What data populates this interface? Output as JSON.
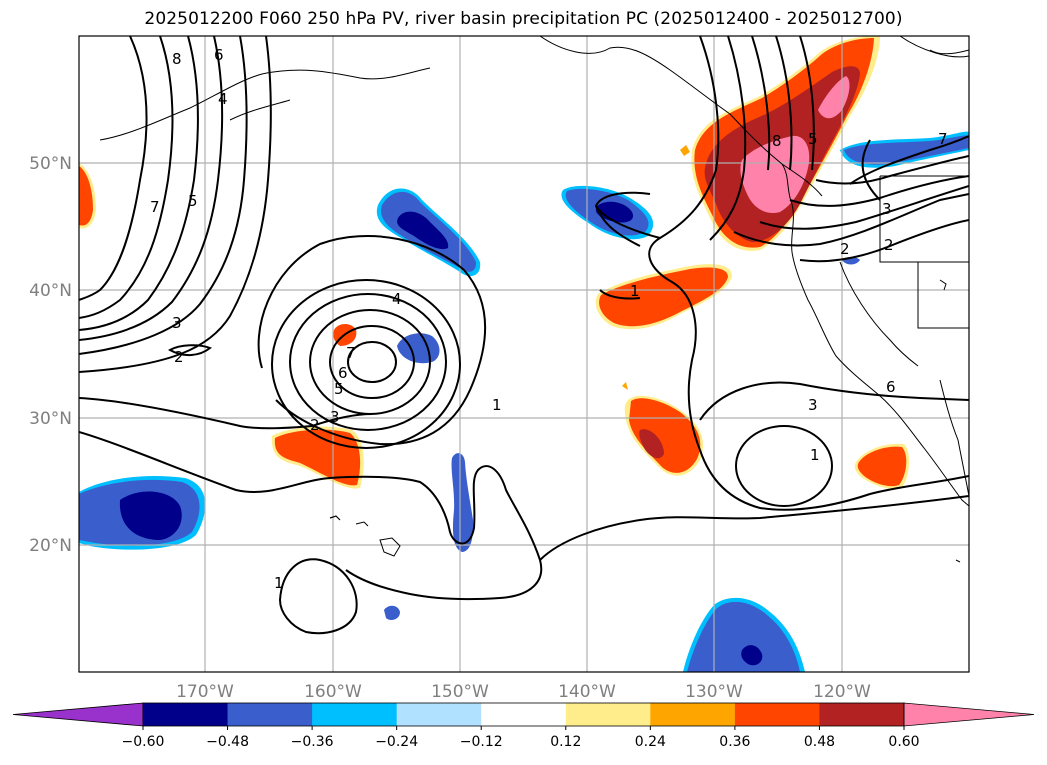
{
  "title": "2025012200 F060 250 hPa PV, river basin precipitation PC (2025012400 - 2025012700)",
  "lat_labels": [
    "50°N",
    "40°N",
    "30°N",
    "20°N"
  ],
  "lon_labels": [
    "170°W",
    "160°W",
    "150°W",
    "140°W",
    "130°W",
    "120°W"
  ],
  "pv_contour_labels": [
    "8",
    "6",
    "4",
    "7",
    "5",
    "3",
    "2",
    "4",
    "7",
    "6",
    "5",
    "3",
    "2",
    "1",
    "1",
    "1",
    "6",
    "8",
    "5",
    "3",
    "2",
    "2",
    "3",
    "1",
    "7"
  ],
  "colorbar": {
    "colors": [
      "#9932cc",
      "#00008b",
      "#3a5fcd",
      "#00bfff",
      "#b0e2ff",
      "#ffffff",
      "#ffec8b",
      "#ffa500",
      "#ff4500",
      "#b22222",
      "#ff82ab"
    ],
    "tick_labels": [
      "−0.60",
      "−0.48",
      "−0.36",
      "−0.24",
      "−0.12",
      "0.12",
      "0.24",
      "0.36",
      "0.48",
      "0.60"
    ]
  }
}
